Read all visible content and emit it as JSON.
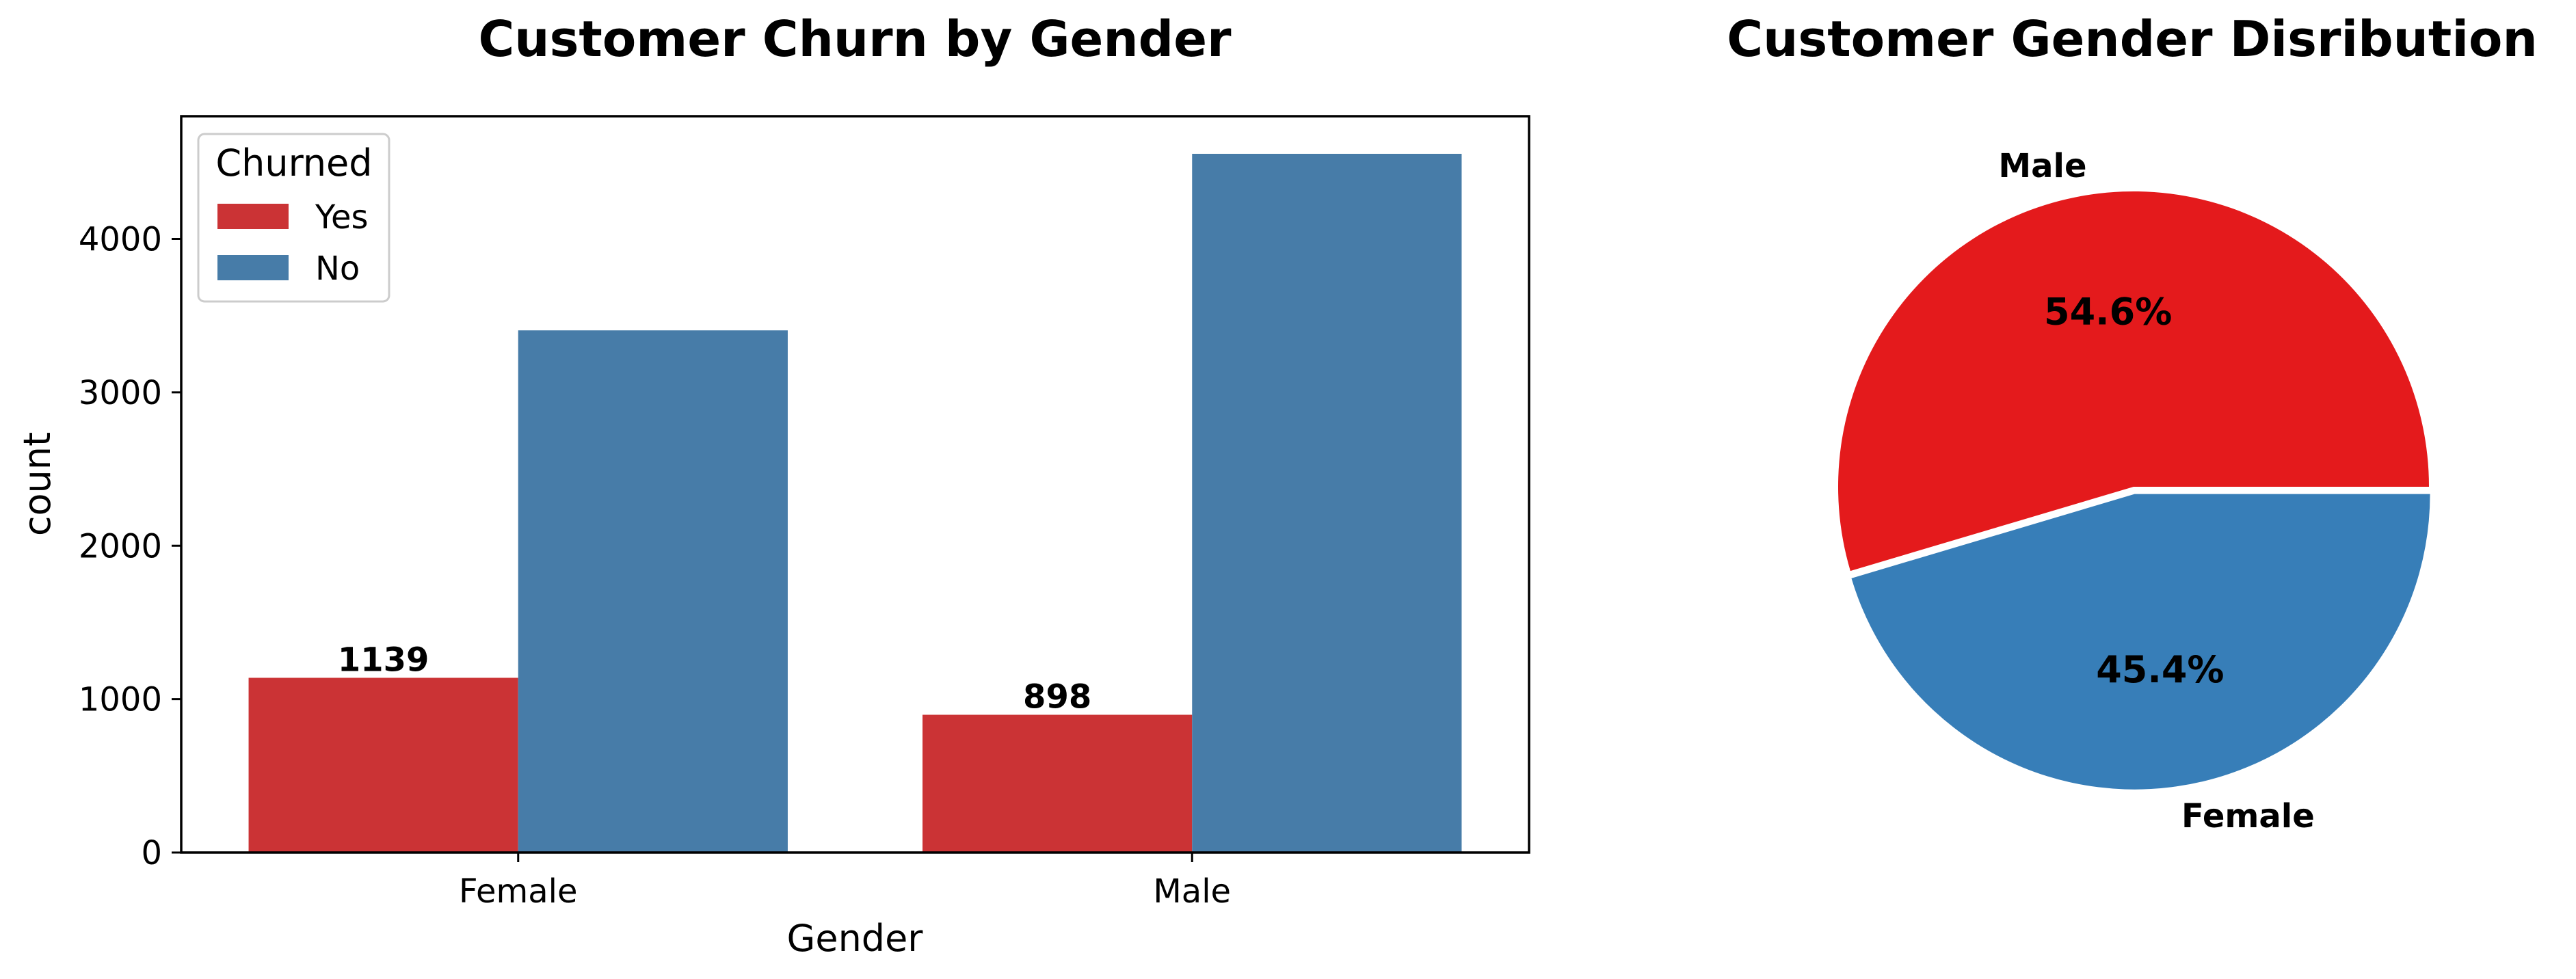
{
  "chart_data": [
    {
      "type": "bar",
      "title": "Customer Churn by Gender",
      "xlabel": "Gender",
      "ylabel": "count",
      "categories": [
        "Female",
        "Male"
      ],
      "ylim": [
        0,
        4800
      ],
      "yticks": [
        0,
        1000,
        2000,
        3000,
        4000
      ],
      "legend": {
        "title": "Churned",
        "placement": "top-left"
      },
      "series": [
        {
          "name": "Yes",
          "values": [
            1139,
            898
          ],
          "color": "#cb3335",
          "data_labels": [
            "1139",
            "898"
          ]
        },
        {
          "name": "No",
          "values": [
            3404,
            4555
          ],
          "color": "#477ca8"
        }
      ],
      "grid": false
    },
    {
      "type": "pie",
      "title": "Customer Gender Disribution",
      "slices": [
        {
          "label": "Male",
          "value": 54.6,
          "pct_label": "54.6%",
          "color": "#e41a1c"
        },
        {
          "label": "Female",
          "value": 45.4,
          "pct_label": "45.4%",
          "color": "#377eb8"
        }
      ]
    }
  ]
}
